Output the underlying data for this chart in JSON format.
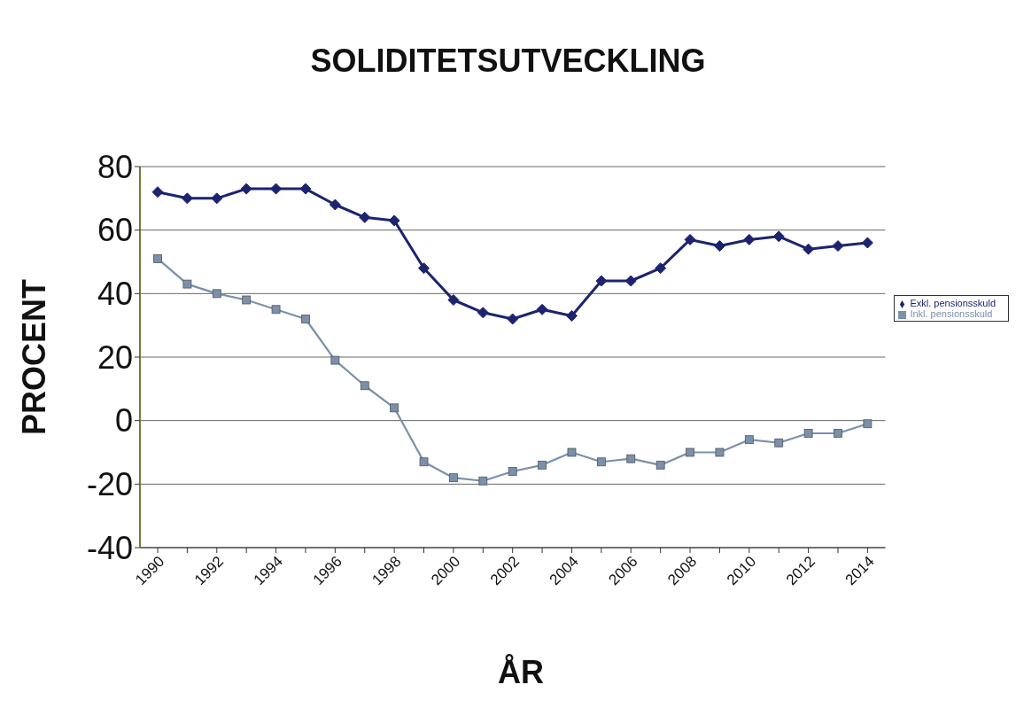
{
  "chart_data": {
    "type": "line",
    "title": "SOLIDITETSUTVECKLING",
    "xlabel": "ÅR",
    "ylabel": "PROCENT",
    "categories": [
      "1990",
      null,
      "1992",
      null,
      "1994",
      null,
      "1996",
      null,
      "1998",
      null,
      "2000",
      null,
      "2002",
      null,
      "2004",
      null,
      "2006",
      null,
      "2008",
      null,
      "2010",
      null,
      "2012",
      null,
      "2014"
    ],
    "series": [
      {
        "name": "Exkl. pensionsskuld",
        "color": "#1c2470",
        "marker": "diamond",
        "values": [
          72,
          70,
          70,
          73,
          73,
          73,
          68,
          64,
          63,
          48,
          38,
          34,
          32,
          35,
          33,
          44,
          44,
          48,
          57,
          55,
          57,
          58,
          54,
          55,
          56
        ]
      },
      {
        "name": "Inkl. pensionsskuld",
        "color": "#7a90ab",
        "marker": "square",
        "values": [
          51,
          43,
          40,
          38,
          35,
          32,
          19,
          11,
          4,
          -13,
          -18,
          -19,
          -16,
          -14,
          -10,
          -13,
          -12,
          -14,
          -10,
          -10,
          -6,
          -7,
          -4,
          -4,
          -1
        ]
      }
    ],
    "ylim": [
      -40,
      80
    ],
    "yticks": [
      -40,
      -20,
      0,
      20,
      40,
      60,
      80
    ],
    "grid": "y",
    "legend": "right",
    "line_style": "solid"
  }
}
